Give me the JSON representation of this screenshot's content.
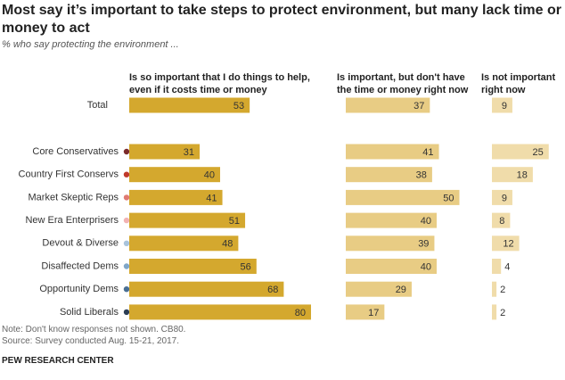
{
  "chart_data": {
    "type": "bar",
    "title": "Most say it’s important to take steps to protect environment, but many lack time or money to act",
    "subtitle": "% who say protecting the environment ...",
    "categories": [
      "Total",
      "Core Conservatives",
      "Country First Conservs",
      "Market Skeptic Reps",
      "New Era Enterprisers",
      "Devout & Diverse",
      "Disaffected Dems",
      "Opportunity Dems",
      "Solid Liberals"
    ],
    "category_colors": [
      null,
      "#7b2b2b",
      "#c0392b",
      "#e07a72",
      "#f2b3b3",
      "#a9c4dc",
      "#7fa6c8",
      "#4a6f93",
      "#2c3e55"
    ],
    "series": [
      {
        "name": "Is so important that I do things to help, even if it costs time or money",
        "color": "#d4a82e",
        "values": [
          53,
          31,
          40,
          41,
          51,
          48,
          56,
          68,
          80
        ]
      },
      {
        "name": "Is important, but don't have the time or money right now",
        "color": "#e8cc84",
        "values": [
          37,
          41,
          38,
          50,
          40,
          39,
          40,
          29,
          17
        ]
      },
      {
        "name": "Is not important right now",
        "color": "#f0dcaa",
        "values": [
          9,
          25,
          18,
          9,
          8,
          12,
          4,
          2,
          2
        ]
      }
    ],
    "xlim": [
      0,
      100
    ],
    "note": "Note: Don't know responses not shown. CB80.",
    "source": "Source: Survey conducted Aug. 15-21, 2017.",
    "footer": "PEW RESEARCH CENTER"
  }
}
